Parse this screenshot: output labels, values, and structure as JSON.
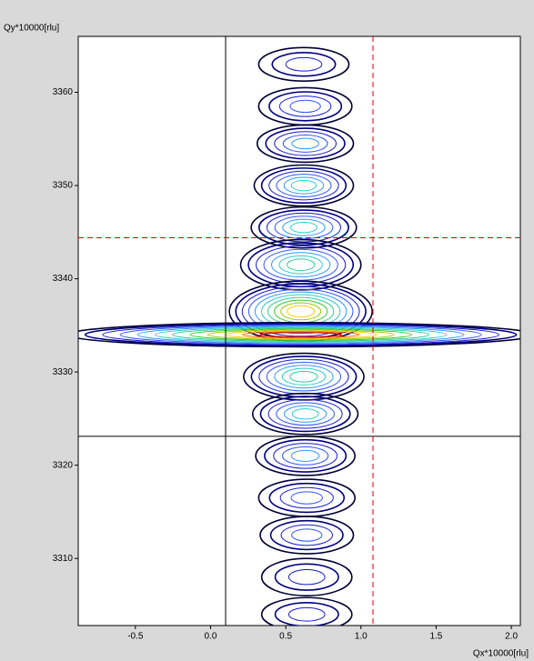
{
  "chart_data": {
    "type": "contour",
    "ylabel": "Qy*10000[rlu]",
    "xlabel": "Qx*10000[rlu]",
    "xlim": [
      -0.88,
      2.06
    ],
    "ylim": [
      3302.8,
      3366
    ],
    "xticks": [
      {
        "value": -0.5,
        "label": "-0.5"
      },
      {
        "value": 0,
        "label": "0.0"
      },
      {
        "value": 0.5,
        "label": "0.5"
      },
      {
        "value": 1,
        "label": "1.0"
      },
      {
        "value": 1.5,
        "label": "1.5"
      },
      {
        "value": 2,
        "label": "2.0"
      }
    ],
    "yticks": [
      3310,
      3320,
      3330,
      3340,
      3350,
      3360
    ],
    "level_colors": [
      "#000033",
      "#000080",
      "#1a1acc",
      "#3355ff",
      "#3399ff",
      "#33cccc",
      "#33cc99",
      "#33cc33",
      "#99cc00",
      "#ffcc00",
      "#ff6600",
      "#cc0000"
    ],
    "peaks": {
      "x": [
        0.62,
        0.63,
        0.63,
        0.62,
        0.62,
        0.6,
        0.6,
        0.6,
        0.62,
        0.63,
        0.63,
        0.64,
        0.64,
        0.64,
        0.64
      ],
      "y": [
        3363,
        3358.5,
        3354.5,
        3350,
        3345.5,
        3341.5,
        3336.5,
        3334,
        3329.5,
        3325.5,
        3321,
        3316.5,
        3312.5,
        3308,
        3304
      ],
      "widths": [
        0.6,
        0.62,
        0.64,
        0.66,
        0.7,
        0.8,
        0.95,
        3.1,
        0.8,
        0.7,
        0.66,
        0.64,
        0.62,
        0.6,
        0.6
      ],
      "heights": [
        3.6,
        4,
        4,
        4.4,
        4.4,
        5.4,
        6.5,
        2.6,
        5,
        4.4,
        4.2,
        4,
        4,
        4,
        3.6
      ],
      "levels": [
        3,
        4,
        5,
        6,
        6,
        7,
        10,
        12,
        7,
        6,
        5,
        4,
        4,
        3,
        3
      ]
    },
    "cursor_lines": {
      "black": {
        "x": 0.1,
        "y": 3323.1,
        "color": "#000000"
      },
      "red": {
        "x": 1.08,
        "y": 3344.4,
        "color": "#dd0000"
      }
    }
  }
}
